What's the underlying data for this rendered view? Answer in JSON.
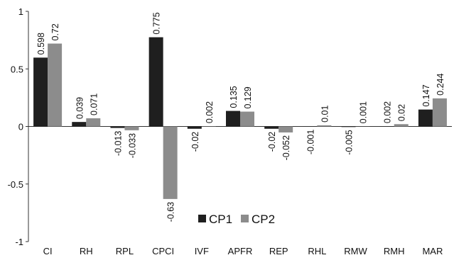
{
  "chart_data": {
    "type": "bar",
    "categories": [
      "CI",
      "RH",
      "RPL",
      "CPCI",
      "IVF",
      "APFR",
      "REP",
      "RHL",
      "RMW",
      "RMH",
      "MAR"
    ],
    "series": [
      {
        "name": "CP1",
        "color": "#1f1f1f",
        "values": [
          0.598,
          0.039,
          -0.013,
          0.775,
          -0.02,
          0.135,
          -0.02,
          -0.001,
          -0.005,
          0.002,
          0.147
        ],
        "labels": [
          "0.598",
          "0.039",
          "-0.013",
          "0.775",
          "-0.02",
          "0.135",
          "-0.02",
          "-0.001",
          "-0.005",
          "0.002",
          "0.147"
        ]
      },
      {
        "name": "CP2",
        "color": "#8c8c8c",
        "values": [
          0.72,
          0.071,
          -0.033,
          -0.63,
          0.002,
          0.129,
          -0.052,
          0.01,
          0.001,
          0.02,
          0.244
        ],
        "labels": [
          "0.72",
          "0.071",
          "-0.033",
          "-0.63",
          "0.002",
          "0.129",
          "-0.052",
          "0.01",
          "0.001",
          "0.02",
          "0.244"
        ]
      }
    ],
    "ylim": [
      -1,
      1
    ],
    "yticks": [
      1,
      0.5,
      0,
      -0.5,
      -1
    ],
    "ytick_labels": [
      "1",
      "0.5",
      "0",
      "-0.5",
      "-1"
    ],
    "grid": false,
    "legend": {
      "position": "bottom-center",
      "entries": [
        "CP1",
        "CP2"
      ]
    },
    "title": "",
    "xlabel": "",
    "ylabel": ""
  }
}
